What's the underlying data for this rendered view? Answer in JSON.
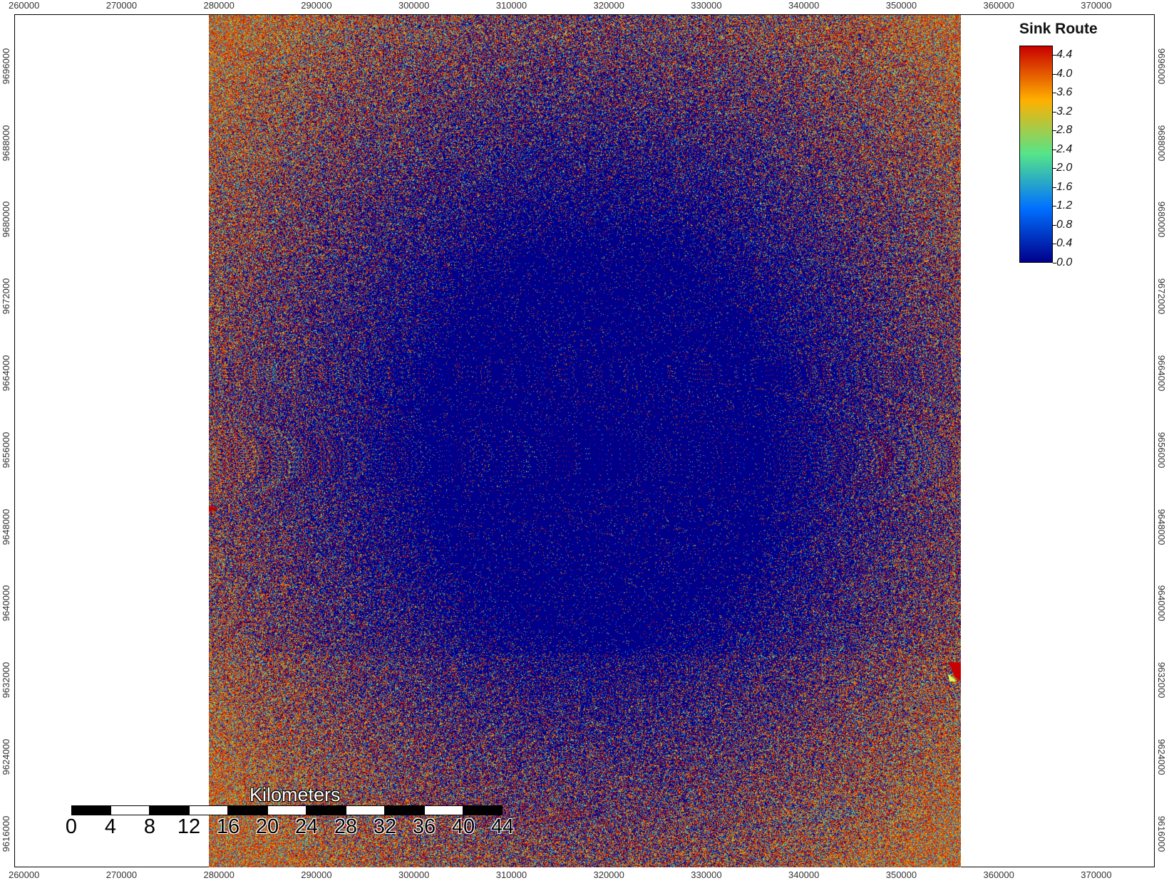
{
  "map": {
    "x_ticks": [
      "260000",
      "270000",
      "280000",
      "290000",
      "300000",
      "310000",
      "320000",
      "330000",
      "340000",
      "350000",
      "360000",
      "370000"
    ],
    "y_ticks": [
      "9696000",
      "9688000",
      "9680000",
      "9672000",
      "9664000",
      "9656000",
      "9648000",
      "9640000",
      "9632000",
      "9624000",
      "9616000"
    ],
    "x_range": [
      259000,
      376000
    ],
    "y_range": [
      9612500,
      9701400
    ],
    "raster_extent": {
      "x_min": 278000,
      "x_max": 356000
    }
  },
  "legend": {
    "title": "Sink Route",
    "labels": [
      "4.4",
      "4.0",
      "3.6",
      "3.2",
      "2.8",
      "2.4",
      "2.0",
      "1.6",
      "1.2",
      "0.8",
      "0.4",
      "0.0"
    ],
    "min": 0.0,
    "max": 4.6,
    "colors": {
      "low": "#00008b",
      "mid_low": "#0070ff",
      "mid": "#55e48a",
      "mid_high": "#ffb000",
      "high": "#c80000"
    }
  },
  "scalebar": {
    "title": "Kilometers",
    "labels": [
      "0",
      "4",
      "8",
      "12",
      "16",
      "20",
      "24",
      "28",
      "32",
      "36",
      "40",
      "44"
    ]
  }
}
